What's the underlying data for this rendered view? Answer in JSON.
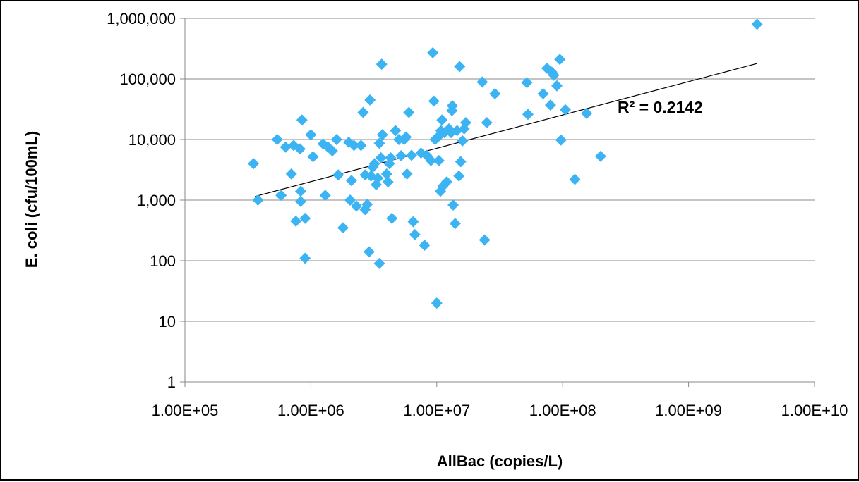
{
  "chart_data": {
    "type": "scatter",
    "xlabel": "AllBac (copies/L)",
    "ylabel": "E. coli (cfu/100mL)",
    "x_scale": "log",
    "y_scale": "log",
    "xlim": [
      100000,
      10000000000
    ],
    "ylim": [
      1,
      1000000
    ],
    "x_tick_values": [
      100000,
      1000000,
      10000000,
      100000000,
      1000000000,
      10000000000
    ],
    "x_tick_labels": [
      "1.00E+05",
      "1.00E+06",
      "1.00E+07",
      "1.00E+08",
      "1.00E+09",
      "1.00E+10"
    ],
    "y_tick_values": [
      1,
      10,
      100,
      1000,
      10000,
      100000,
      1000000
    ],
    "y_tick_labels": [
      "1",
      "10",
      "100",
      "1,000",
      "10,000",
      "100,000",
      "1,000,000"
    ],
    "grid": "horizontal",
    "legend": "none",
    "marker_color": "#3CB4F4",
    "trendline": {
      "x_range": [
        360000,
        3500000000
      ],
      "y_range": [
        1150,
        180000
      ],
      "color": "#000000"
    },
    "annotation": "R² = 0.2142",
    "points": [
      [
        350000,
        4000
      ],
      [
        380000,
        1000
      ],
      [
        540000,
        10000
      ],
      [
        580000,
        1200
      ],
      [
        630000,
        7500
      ],
      [
        700000,
        2700
      ],
      [
        730000,
        8000
      ],
      [
        760000,
        450
      ],
      [
        820000,
        7000
      ],
      [
        850000,
        21000
      ],
      [
        830000,
        1400
      ],
      [
        830000,
        950
      ],
      [
        900000,
        500
      ],
      [
        900000,
        110
      ],
      [
        1000000,
        12000
      ],
      [
        1040000,
        5200
      ],
      [
        1250000,
        8500
      ],
      [
        1300000,
        1200
      ],
      [
        1370000,
        7500
      ],
      [
        1480000,
        6500
      ],
      [
        1600000,
        10000
      ],
      [
        1650000,
        2600
      ],
      [
        1800000,
        350
      ],
      [
        2000000,
        9000
      ],
      [
        2050000,
        1000
      ],
      [
        2100000,
        2100
      ],
      [
        2200000,
        8000
      ],
      [
        2300000,
        800
      ],
      [
        2500000,
        8000
      ],
      [
        2600000,
        28000
      ],
      [
        2700000,
        2600
      ],
      [
        2700000,
        700
      ],
      [
        2800000,
        850
      ],
      [
        2900000,
        140
      ],
      [
        2950000,
        45000
      ],
      [
        3000000,
        2500
      ],
      [
        3100000,
        3500
      ],
      [
        3200000,
        4000
      ],
      [
        3300000,
        1800
      ],
      [
        3400000,
        2300
      ],
      [
        3500000,
        90
      ],
      [
        3500000,
        8700
      ],
      [
        3600000,
        5000
      ],
      [
        3650000,
        175000
      ],
      [
        3700000,
        12000
      ],
      [
        4000000,
        2700
      ],
      [
        4100000,
        2000
      ],
      [
        4200000,
        4000
      ],
      [
        4300000,
        5000
      ],
      [
        4400000,
        500
      ],
      [
        4700000,
        14000
      ],
      [
        5000000,
        10000
      ],
      [
        5200000,
        5400
      ],
      [
        5500000,
        10000
      ],
      [
        5700000,
        11000
      ],
      [
        5800000,
        2700
      ],
      [
        6000000,
        28000
      ],
      [
        6300000,
        5500
      ],
      [
        6500000,
        440
      ],
      [
        6700000,
        270
      ],
      [
        7500000,
        6000
      ],
      [
        8000000,
        180
      ],
      [
        8300000,
        5500
      ],
      [
        9000000,
        4500
      ],
      [
        9300000,
        270000
      ],
      [
        9500000,
        43000
      ],
      [
        9700000,
        10000
      ],
      [
        10000000,
        20
      ],
      [
        10200000,
        11000
      ],
      [
        10400000,
        4500
      ],
      [
        10700000,
        1400
      ],
      [
        10800000,
        14000
      ],
      [
        11000000,
        21000
      ],
      [
        11200000,
        1700
      ],
      [
        11500000,
        13000
      ],
      [
        12000000,
        2000
      ],
      [
        12500000,
        15000
      ],
      [
        13000000,
        13000
      ],
      [
        13200000,
        30000
      ],
      [
        13300000,
        36000
      ],
      [
        13500000,
        830
      ],
      [
        14000000,
        410
      ],
      [
        14500000,
        14000
      ],
      [
        15000000,
        2500
      ],
      [
        15200000,
        160000
      ],
      [
        15500000,
        4300
      ],
      [
        16000000,
        9500
      ],
      [
        16500000,
        15000
      ],
      [
        17000000,
        19000
      ],
      [
        23000000,
        89000
      ],
      [
        24000000,
        220
      ],
      [
        25000000,
        19000
      ],
      [
        29000000,
        57000
      ],
      [
        52000000,
        87000
      ],
      [
        53000000,
        26000
      ],
      [
        70000000,
        57000
      ],
      [
        75000000,
        150000
      ],
      [
        80000000,
        37000
      ],
      [
        82000000,
        130000
      ],
      [
        85000000,
        115000
      ],
      [
        90000000,
        77000
      ],
      [
        95000000,
        210000
      ],
      [
        97000000,
        9800
      ],
      [
        105000000,
        31000
      ],
      [
        125000000,
        2200
      ],
      [
        155000000,
        27000
      ],
      [
        200000000,
        5300
      ],
      [
        3500000000,
        800000
      ]
    ]
  }
}
